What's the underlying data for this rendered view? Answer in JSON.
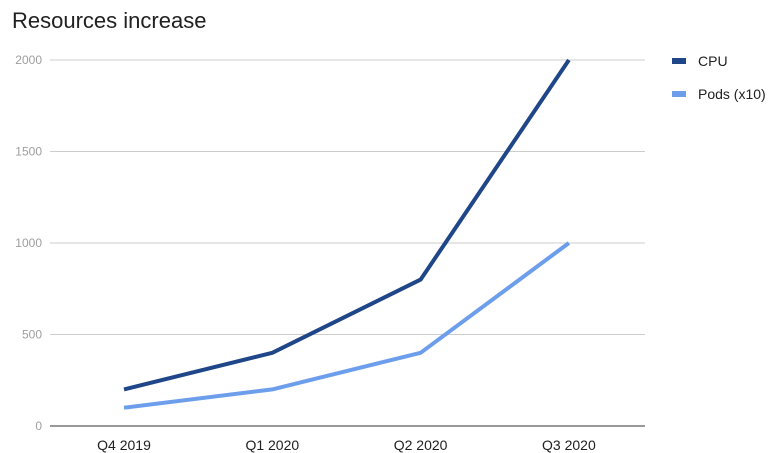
{
  "chart_data": {
    "type": "line",
    "title": "Resources increase",
    "categories": [
      "Q4 2019",
      "Q1 2020",
      "Q2 2020",
      "Q3 2020"
    ],
    "ylim": [
      0,
      2000
    ],
    "yticks": [
      0,
      500,
      1000,
      1500,
      2000
    ],
    "grid": true,
    "legend_position": "right",
    "series": [
      {
        "name": "CPU",
        "values": [
          200,
          400,
          800,
          2000
        ],
        "color": "#1f4688"
      },
      {
        "name": "Pods (x10)",
        "values": [
          100,
          200,
          400,
          1000
        ],
        "color": "#6d9eeb"
      }
    ]
  }
}
